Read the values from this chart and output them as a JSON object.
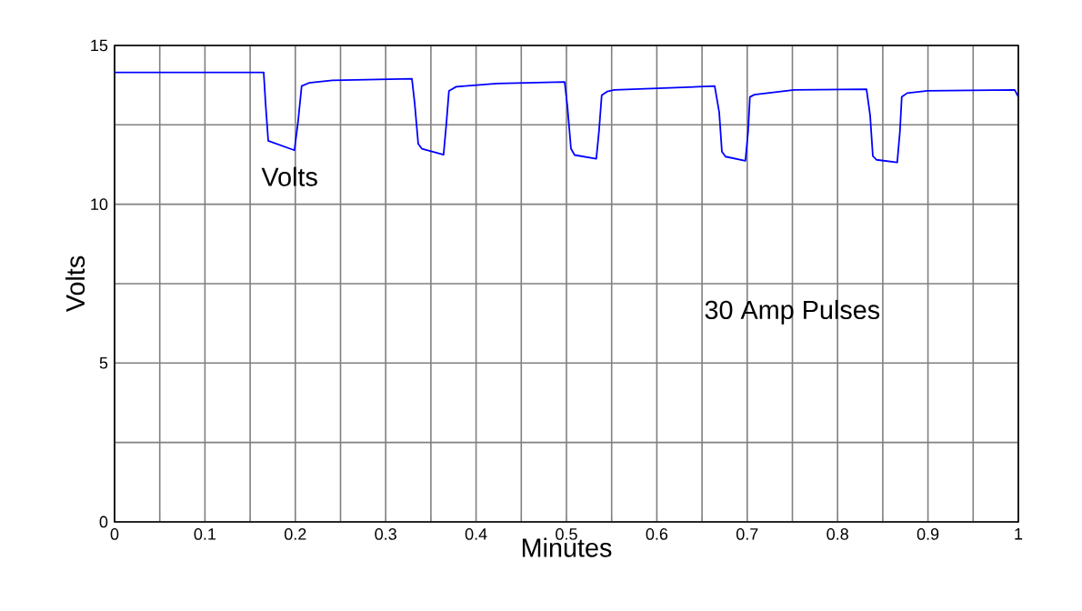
{
  "chart_data": {
    "type": "line",
    "xlabel": "Minutes",
    "ylabel": "Volts",
    "annotations": [
      "Volts",
      "30 Amp Pulses"
    ],
    "xlim": [
      0,
      1
    ],
    "ylim": [
      0,
      15
    ],
    "xticks": [
      0,
      {
        "value": 0.05,
        "label": null
      },
      0.1,
      {
        "value": 0.15,
        "label": null
      },
      0.2,
      {
        "value": 0.25,
        "label": null
      },
      0.3,
      {
        "value": 0.35,
        "label": null
      },
      0.4,
      {
        "value": 0.45,
        "label": null
      },
      0.5,
      {
        "value": 0.55,
        "label": null
      },
      0.6,
      {
        "value": 0.65,
        "label": null
      },
      0.7,
      {
        "value": 0.75,
        "label": null
      },
      0.8,
      {
        "value": 0.85,
        "label": null
      },
      0.9,
      {
        "value": 0.95,
        "label": null
      },
      1
    ],
    "yticks": [
      0,
      {
        "value": 2.5,
        "label": null
      },
      5,
      {
        "value": 7.5,
        "label": null
      },
      10,
      {
        "value": 12.5,
        "label": null
      },
      15
    ],
    "grid": true,
    "marker": "none",
    "line_style": "solid",
    "x": [
      0,
      0.165,
      0.167,
      0.17,
      0.199,
      0.203,
      0.207,
      0.215,
      0.241,
      0.329,
      0.332,
      0.336,
      0.34,
      0.364,
      0.367,
      0.37,
      0.378,
      0.423,
      0.498,
      0.501,
      0.505,
      0.509,
      0.533,
      0.536,
      0.539,
      0.545,
      0.553,
      0.664,
      0.669,
      0.672,
      0.676,
      0.698,
      0.701,
      0.703,
      0.708,
      0.714,
      0.752,
      0.832,
      0.836,
      0.839,
      0.843,
      0.866,
      0.869,
      0.871,
      0.877,
      0.899,
      0.996,
      1.0
    ],
    "series": [
      {
        "color": "#0000ff",
        "values": [
          14.15,
          14.15,
          13.2,
          12.0,
          11.7,
          12.6,
          13.72,
          13.82,
          13.9,
          13.95,
          13.2,
          11.9,
          11.75,
          11.56,
          12.5,
          13.57,
          13.7,
          13.8,
          13.85,
          13.1,
          11.75,
          11.55,
          11.43,
          12.3,
          13.43,
          13.55,
          13.6,
          13.72,
          12.9,
          11.66,
          11.5,
          11.37,
          12.3,
          13.38,
          13.45,
          13.47,
          13.6,
          13.62,
          12.8,
          11.52,
          11.4,
          11.32,
          12.3,
          13.38,
          13.5,
          13.57,
          13.6,
          13.38
        ]
      }
    ]
  }
}
